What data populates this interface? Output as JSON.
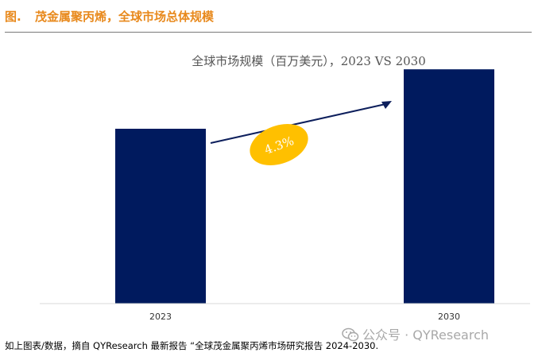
{
  "header": {
    "figure_label": "图.",
    "title": "茂金属聚丙烯，全球市场总体规模"
  },
  "chart_data": {
    "type": "bar",
    "title": "全球市场规模（百万美元），2023 VS 2030",
    "categories": [
      "2023",
      "2030"
    ],
    "values": [
      100,
      134
    ],
    "ylim": [
      0,
      150
    ],
    "xlabel": "",
    "ylabel": "",
    "grid": false,
    "annotation": {
      "text": "4.3%",
      "meaning": "CAGR arrow from 2023 to 2030"
    },
    "bar_color": "#001A5E",
    "badge_color": "#FFC000"
  },
  "source": "如上图表/数据，摘自 QYResearch 最新报告 “全球茂金属聚丙烯市场研究报告 2024-2030.",
  "watermark": {
    "text": "公众号 · QYResearch",
    "icon": "wechat-icon"
  }
}
